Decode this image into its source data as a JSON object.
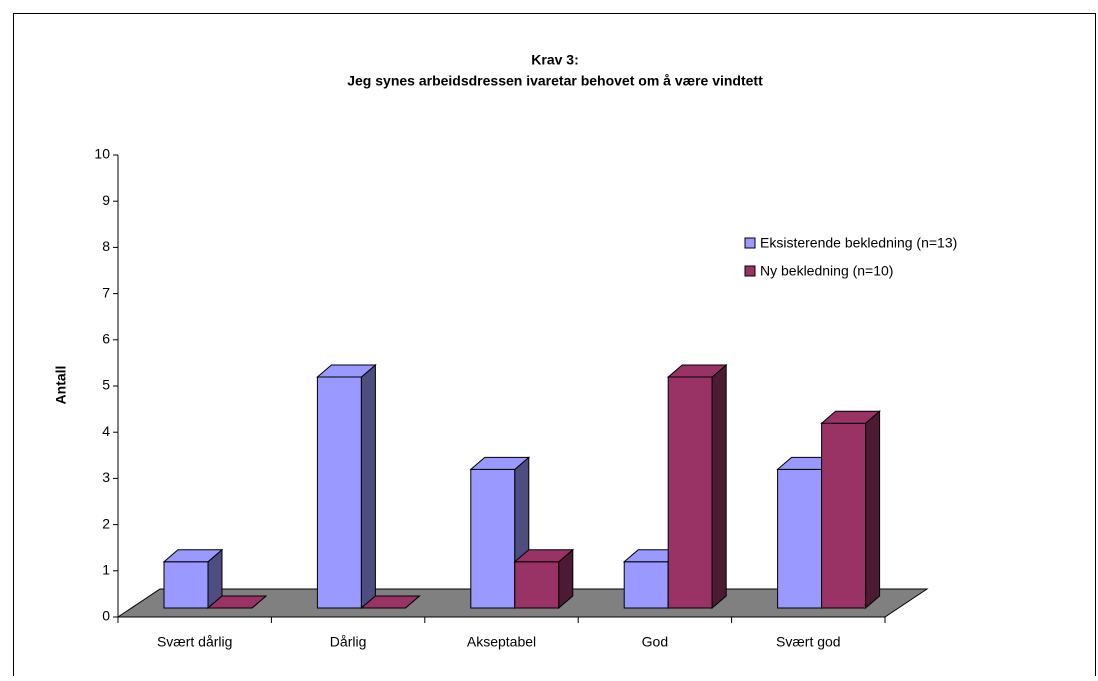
{
  "chart_data": {
    "type": "bar3d",
    "title": "Krav 3:",
    "subtitle": "Jeg synes arbeidsdressen ivaretar behovet om å være vindtett",
    "y_label": "Antall",
    "categories": [
      "Svært dårlig",
      "Dårlig",
      "Akseptabel",
      "God",
      "Svært god"
    ],
    "series": [
      {
        "name": "Eksisterende bekledning (n=13)",
        "color": "#9999ff",
        "values": [
          1,
          5,
          3,
          1,
          3
        ]
      },
      {
        "name": "Ny bekledning (n=10)",
        "color": "#993366",
        "values": [
          0,
          0,
          1,
          5,
          4
        ]
      }
    ],
    "ylim": [
      0,
      10
    ],
    "yticks": [
      0,
      1,
      2,
      3,
      4,
      5,
      6,
      7,
      8,
      9,
      10
    ],
    "floor_color": "#808080",
    "legend": "right"
  }
}
